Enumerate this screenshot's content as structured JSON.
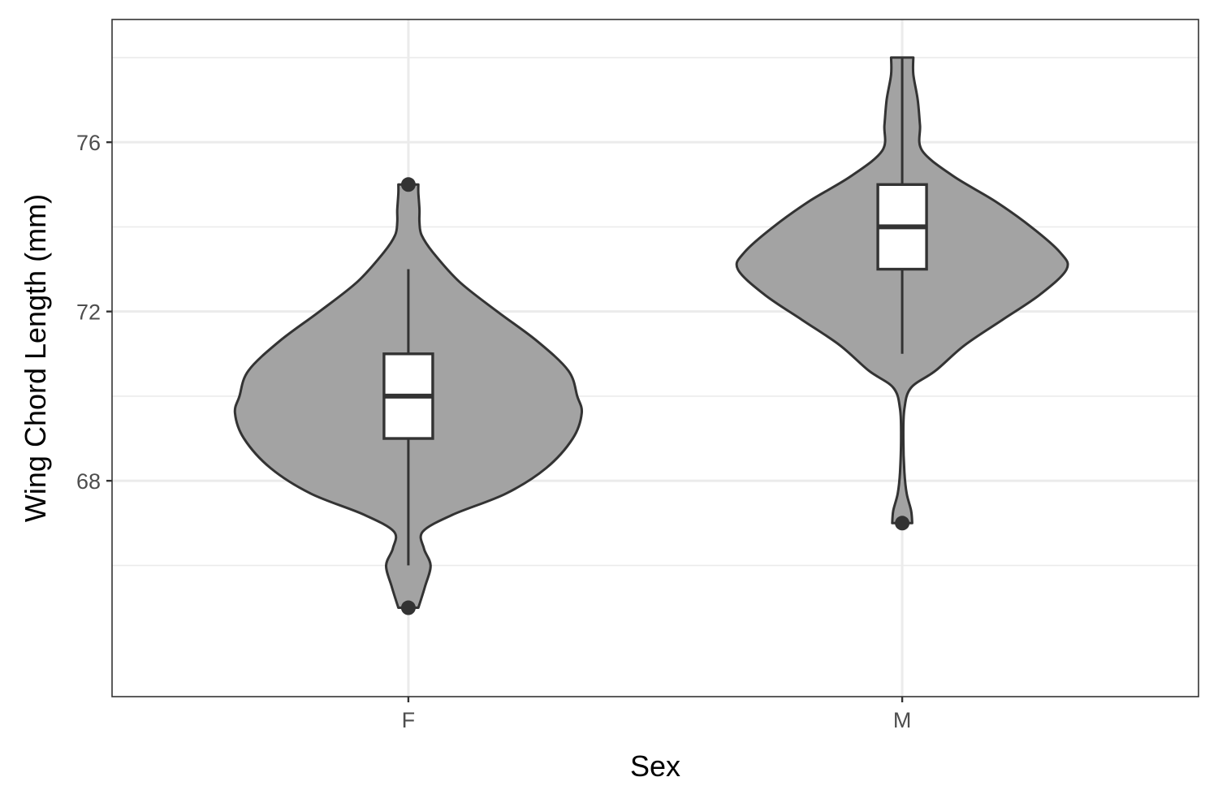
{
  "chart_data": {
    "type": "violin",
    "title": "",
    "xlabel": "Sex",
    "ylabel": "Wing Chord Length (mm)",
    "categories": [
      "F",
      "M"
    ],
    "ylim": [
      62.9,
      78.9
    ],
    "y_ticks": [
      68,
      72,
      76
    ],
    "y_minor_ticks": [
      66,
      70,
      74,
      78
    ],
    "grid": true,
    "colors": {
      "violin_fill": "#a3a3a3",
      "outline": "#333333",
      "box_fill": "#ffffff",
      "grid": "#ebebeb"
    },
    "groups": [
      {
        "category": "F",
        "min": 65,
        "q1": 69,
        "median": 70,
        "q3": 71,
        "max": 75,
        "whisker_low": 66,
        "whisker_high": 73,
        "outliers": [
          65,
          75
        ],
        "density_halfwidth": [
          [
            65.0,
            0.045
          ],
          [
            65.5,
            0.075
          ],
          [
            66.0,
            0.1
          ],
          [
            66.4,
            0.07
          ],
          [
            66.8,
            0.065
          ],
          [
            67.2,
            0.2
          ],
          [
            67.7,
            0.44
          ],
          [
            68.3,
            0.62
          ],
          [
            69.0,
            0.74
          ],
          [
            69.6,
            0.78
          ],
          [
            70.0,
            0.76
          ],
          [
            70.6,
            0.72
          ],
          [
            71.3,
            0.58
          ],
          [
            72.0,
            0.4
          ],
          [
            72.7,
            0.23
          ],
          [
            73.4,
            0.11
          ],
          [
            73.8,
            0.06
          ],
          [
            74.1,
            0.05
          ],
          [
            74.4,
            0.05
          ],
          [
            74.8,
            0.045
          ],
          [
            75.0,
            0.045
          ]
        ]
      },
      {
        "category": "M",
        "min": 67,
        "q1": 73,
        "median": 74,
        "q3": 75,
        "max": 78,
        "whisker_low": 71,
        "whisker_high": 78,
        "outliers": [
          67
        ],
        "density_halfwidth": [
          [
            67.0,
            0.045
          ],
          [
            67.3,
            0.04
          ],
          [
            67.7,
            0.02
          ],
          [
            68.2,
            0.01
          ],
          [
            69.0,
            0.005
          ],
          [
            69.7,
            0.01
          ],
          [
            70.2,
            0.04
          ],
          [
            70.6,
            0.15
          ],
          [
            71.2,
            0.28
          ],
          [
            71.8,
            0.45
          ],
          [
            72.4,
            0.62
          ],
          [
            73.0,
            0.74
          ],
          [
            73.4,
            0.71
          ],
          [
            74.0,
            0.58
          ],
          [
            74.6,
            0.42
          ],
          [
            75.2,
            0.23
          ],
          [
            75.8,
            0.09
          ],
          [
            76.4,
            0.08
          ],
          [
            77.0,
            0.07
          ],
          [
            77.6,
            0.05
          ],
          [
            78.0,
            0.05
          ]
        ]
      }
    ]
  }
}
